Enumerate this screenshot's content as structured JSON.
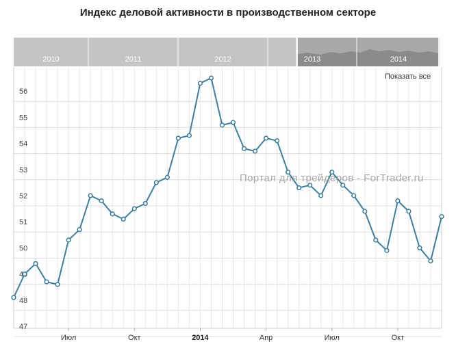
{
  "chart_data": {
    "type": "line",
    "title": "Индекс деловой активности в производственном секторе",
    "xlabel": "",
    "ylabel": "",
    "ylim": [
      47,
      57
    ],
    "y_ticks": [
      "47",
      "48",
      "49",
      "50",
      "51",
      "52",
      "53",
      "54",
      "55",
      "56"
    ],
    "x_ticks": [
      {
        "label": "Июл",
        "index": 5,
        "bold": false
      },
      {
        "label": "Окт",
        "index": 11,
        "bold": false
      },
      {
        "label": "2014",
        "index": 17,
        "bold": true
      },
      {
        "label": "Апр",
        "index": 23,
        "bold": false
      },
      {
        "label": "Июл",
        "index": 29,
        "bold": false
      },
      {
        "label": "Окт",
        "index": 35,
        "bold": false
      }
    ],
    "grid": true,
    "legend": "none",
    "series": [
      {
        "color": "#3a7fa0",
        "values": [
          48.1,
          49.0,
          49.4,
          48.7,
          48.6,
          50.3,
          50.7,
          52.0,
          51.8,
          51.3,
          51.1,
          51.5,
          51.7,
          52.5,
          52.7,
          54.2,
          54.3,
          56.3,
          56.5,
          54.7,
          54.8,
          53.8,
          53.7,
          54.2,
          54.1,
          52.9,
          52.3,
          52.4,
          52.0,
          52.9,
          52.4,
          52.0,
          51.4,
          50.3,
          49.9,
          51.8,
          51.4,
          50.0,
          49.5,
          51.2
        ]
      }
    ]
  },
  "navigator": {
    "years": [
      "2010",
      "2011",
      "2012",
      "2013",
      "2014"
    ]
  },
  "controls": {
    "show_all_label": "Показать все"
  },
  "watermark": "Портал для трейдеров - ForTrader.ru"
}
